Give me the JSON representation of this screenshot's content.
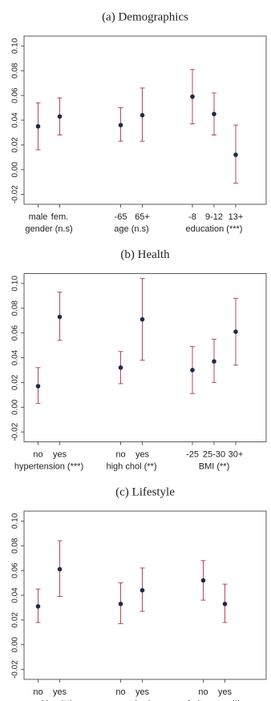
{
  "chart_data": [
    {
      "type": "errorbar",
      "title": "(a) Demographics",
      "color": "#1c2b4a",
      "error_color": "#b5475c",
      "ylim": [
        -0.028,
        0.108
      ],
      "yticks": [
        -0.02,
        {
          "value": 0,
          "label": "0.00"
        },
        0.02,
        0.04,
        0.06,
        0.08,
        {
          "value": 0.1,
          "label": "0.10"
        }
      ],
      "groups": [
        {
          "name": "gender (n.s)",
          "categories": [
            "male",
            "fem."
          ],
          "values": [
            0.035,
            0.043
          ],
          "lower": [
            0.016,
            0.028
          ],
          "upper": [
            0.054,
            0.058
          ]
        },
        {
          "name": "age (n.s)",
          "categories": [
            "-65",
            "65+"
          ],
          "values": [
            0.036,
            0.044
          ],
          "lower": [
            0.023,
            0.023
          ],
          "upper": [
            0.05,
            0.066
          ]
        },
        {
          "name": "education (***)",
          "categories": [
            "-8",
            "9-12",
            "13+"
          ],
          "values": [
            0.059,
            0.045,
            0.012
          ],
          "lower": [
            0.037,
            0.028,
            -0.011
          ],
          "upper": [
            0.081,
            0.062,
            0.036
          ]
        }
      ]
    },
    {
      "type": "errorbar",
      "title": "(b) Health",
      "color": "#1c2b4a",
      "error_color": "#b5475c",
      "ylim": [
        -0.028,
        0.108
      ],
      "yticks": [
        -0.02,
        {
          "value": 0,
          "label": "0.00"
        },
        0.02,
        0.04,
        0.06,
        0.08,
        {
          "value": 0.1,
          "label": "0.10"
        }
      ],
      "groups": [
        {
          "name": "hypertension (***)",
          "categories": [
            "no",
            "yes"
          ],
          "values": [
            0.017,
            0.073
          ],
          "lower": [
            0.003,
            0.054
          ],
          "upper": [
            0.032,
            0.093
          ]
        },
        {
          "name": "high chol (**)",
          "categories": [
            "no",
            "yes"
          ],
          "values": [
            0.032,
            0.071
          ],
          "lower": [
            0.019,
            0.038
          ],
          "upper": [
            0.045,
            0.104
          ]
        },
        {
          "name": "BMI (**)",
          "categories": [
            "-25",
            "25-30",
            "30+"
          ],
          "values": [
            0.03,
            0.037,
            0.061
          ],
          "lower": [
            0.011,
            0.02,
            0.034
          ],
          "upper": [
            0.049,
            0.055,
            0.088
          ]
        }
      ]
    },
    {
      "type": "errorbar",
      "title": "(c) Lifestyle",
      "color": "#1c2b4a",
      "error_color": "#b5475c",
      "ylim": [
        -0.028,
        0.108
      ],
      "yticks": [
        -0.02,
        {
          "value": 0,
          "label": "0.00"
        },
        0.02,
        0.04,
        0.06,
        0.08,
        {
          "value": 0.1,
          "label": "0.10"
        }
      ],
      "groups": [
        {
          "name": "smoking (**)",
          "categories": [
            "no",
            "yes"
          ],
          "values": [
            0.031,
            0.061
          ],
          "lower": [
            0.018,
            0.039
          ],
          "upper": [
            0.045,
            0.084
          ]
        },
        {
          "name": "sport (n.s)",
          "categories": [
            "no",
            "yes"
          ],
          "values": [
            0.033,
            0.044
          ],
          "lower": [
            0.017,
            0.027
          ],
          "upper": [
            0.05,
            0.062
          ]
        },
        {
          "name": "fruit or veg (*)",
          "categories": [
            "no",
            "yes"
          ],
          "values": [
            0.052,
            0.033
          ],
          "lower": [
            0.036,
            0.018
          ],
          "upper": [
            0.068,
            0.049
          ]
        }
      ]
    }
  ]
}
